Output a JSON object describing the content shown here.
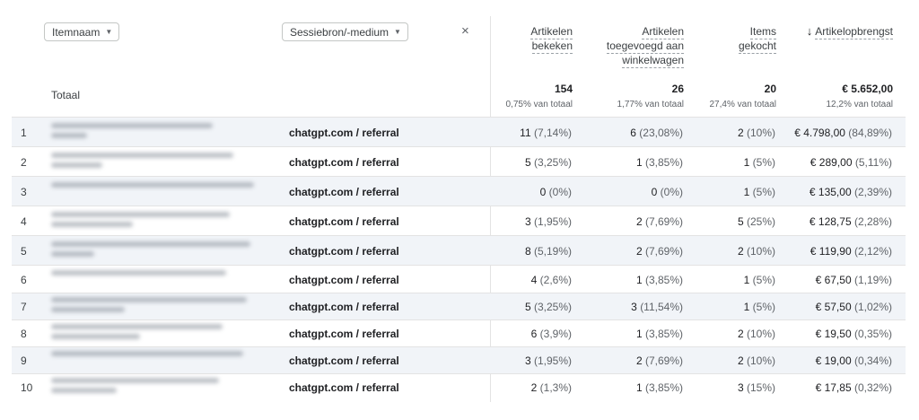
{
  "filters": {
    "dim1_label": "Itemnaam",
    "dim2_label": "Sessiebron/-medium",
    "close_icon": "×"
  },
  "columns": {
    "viewed": [
      "Artikelen",
      "bekeken"
    ],
    "added": [
      "Artikelen",
      "toegevoegd aan",
      "winkelwagen"
    ],
    "purchased": [
      "Items",
      "gekocht"
    ],
    "revenue": "Artikelopbrengst",
    "sort_icon": "↓"
  },
  "totals": {
    "label": "Totaal",
    "viewed": "154",
    "viewed_pct": "0,75% van totaal",
    "added": "26",
    "added_pct": "1,77% van totaal",
    "purchased": "20",
    "purchased_pct": "27,4% van totaal",
    "revenue": "€ 5.652,00",
    "revenue_pct": "12,2% van totaal"
  },
  "rows": [
    {
      "n": "1",
      "source": "chatgpt.com / referral",
      "viewed": "11",
      "viewed_pct": "(7,14%)",
      "added": "6",
      "added_pct": "(23,08%)",
      "purchased": "2",
      "purchased_pct": "(10%)",
      "revenue": "€ 4.798,00",
      "revenue_pct": "(84,89%)"
    },
    {
      "n": "2",
      "source": "chatgpt.com / referral",
      "viewed": "5",
      "viewed_pct": "(3,25%)",
      "added": "1",
      "added_pct": "(3,85%)",
      "purchased": "1",
      "purchased_pct": "(5%)",
      "revenue": "€ 289,00",
      "revenue_pct": "(5,11%)"
    },
    {
      "n": "3",
      "source": "chatgpt.com / referral",
      "viewed": "0",
      "viewed_pct": "(0%)",
      "added": "0",
      "added_pct": "(0%)",
      "purchased": "1",
      "purchased_pct": "(5%)",
      "revenue": "€ 135,00",
      "revenue_pct": "(2,39%)"
    },
    {
      "n": "4",
      "source": "chatgpt.com / referral",
      "viewed": "3",
      "viewed_pct": "(1,95%)",
      "added": "2",
      "added_pct": "(7,69%)",
      "purchased": "5",
      "purchased_pct": "(25%)",
      "revenue": "€ 128,75",
      "revenue_pct": "(2,28%)"
    },
    {
      "n": "5",
      "source": "chatgpt.com / referral",
      "viewed": "8",
      "viewed_pct": "(5,19%)",
      "added": "2",
      "added_pct": "(7,69%)",
      "purchased": "2",
      "purchased_pct": "(10%)",
      "revenue": "€ 119,90",
      "revenue_pct": "(2,12%)"
    },
    {
      "n": "6",
      "source": "chatgpt.com / referral",
      "viewed": "4",
      "viewed_pct": "(2,6%)",
      "added": "1",
      "added_pct": "(3,85%)",
      "purchased": "1",
      "purchased_pct": "(5%)",
      "revenue": "€ 67,50",
      "revenue_pct": "(1,19%)"
    },
    {
      "n": "7",
      "source": "chatgpt.com / referral",
      "viewed": "5",
      "viewed_pct": "(3,25%)",
      "added": "3",
      "added_pct": "(11,54%)",
      "purchased": "1",
      "purchased_pct": "(5%)",
      "revenue": "€ 57,50",
      "revenue_pct": "(1,02%)"
    },
    {
      "n": "8",
      "source": "chatgpt.com / referral",
      "viewed": "6",
      "viewed_pct": "(3,9%)",
      "added": "1",
      "added_pct": "(3,85%)",
      "purchased": "2",
      "purchased_pct": "(10%)",
      "revenue": "€ 19,50",
      "revenue_pct": "(0,35%)"
    },
    {
      "n": "9",
      "source": "chatgpt.com / referral",
      "viewed": "3",
      "viewed_pct": "(1,95%)",
      "added": "2",
      "added_pct": "(7,69%)",
      "purchased": "2",
      "purchased_pct": "(10%)",
      "revenue": "€ 19,00",
      "revenue_pct": "(0,34%)"
    },
    {
      "n": "10",
      "source": "chatgpt.com / referral",
      "viewed": "2",
      "viewed_pct": "(1,3%)",
      "added": "1",
      "added_pct": "(3,85%)",
      "purchased": "3",
      "purchased_pct": "(15%)",
      "revenue": "€ 17,85",
      "revenue_pct": "(0,32%)"
    }
  ]
}
